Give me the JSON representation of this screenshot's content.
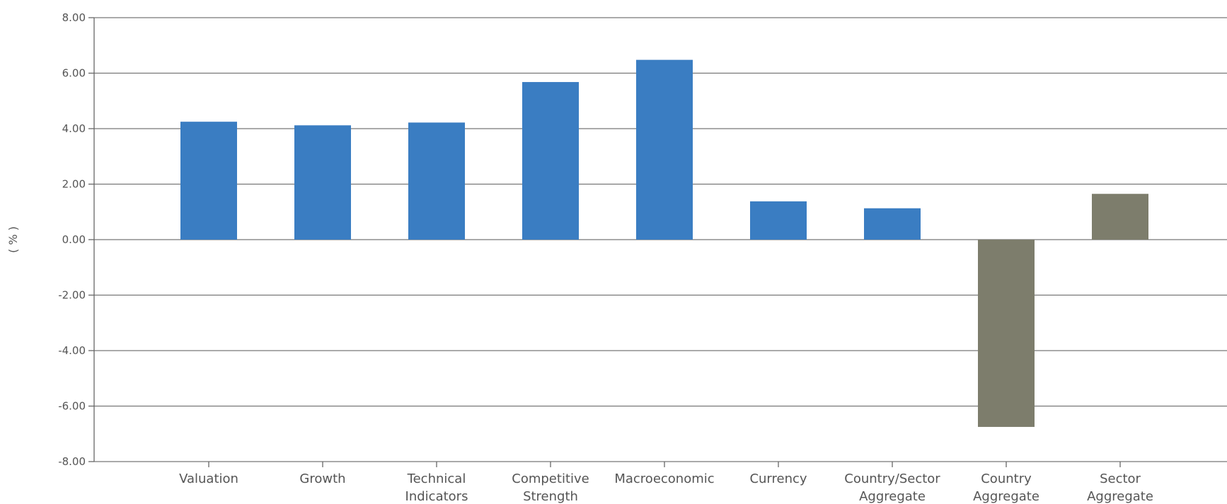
{
  "chart_data": {
    "type": "bar",
    "title": "",
    "xlabel": "",
    "ylabel": "( % )",
    "ylim": [
      -8,
      8
    ],
    "ytick_step": 2,
    "ytick_labels": [
      "8.00",
      "6.00",
      "4.00",
      "2.00",
      "0.00",
      "-2.00",
      "-4.00",
      "-6.00",
      "-8.00"
    ],
    "grid": true,
    "legend": "none",
    "categories": [
      [
        "Valuation"
      ],
      [
        "Growth"
      ],
      [
        "Technical",
        "Indicators"
      ],
      [
        "Competitive",
        "Strength"
      ],
      [
        "Macroeconomic"
      ],
      [
        "Currency"
      ],
      [
        "Country/Sector",
        "Aggregate"
      ],
      [
        "Country",
        "Aggregate"
      ],
      [
        "Sector",
        "Aggregate"
      ]
    ],
    "values": [
      4.25,
      4.12,
      4.22,
      5.68,
      6.48,
      1.38,
      1.13,
      -6.75,
      1.65
    ],
    "bar_colors": [
      "#3A7DC2",
      "#3A7DC2",
      "#3A7DC2",
      "#3A7DC2",
      "#3A7DC2",
      "#3A7DC2",
      "#3A7DC2",
      "#7D7D6C",
      "#7D7D6C"
    ]
  }
}
